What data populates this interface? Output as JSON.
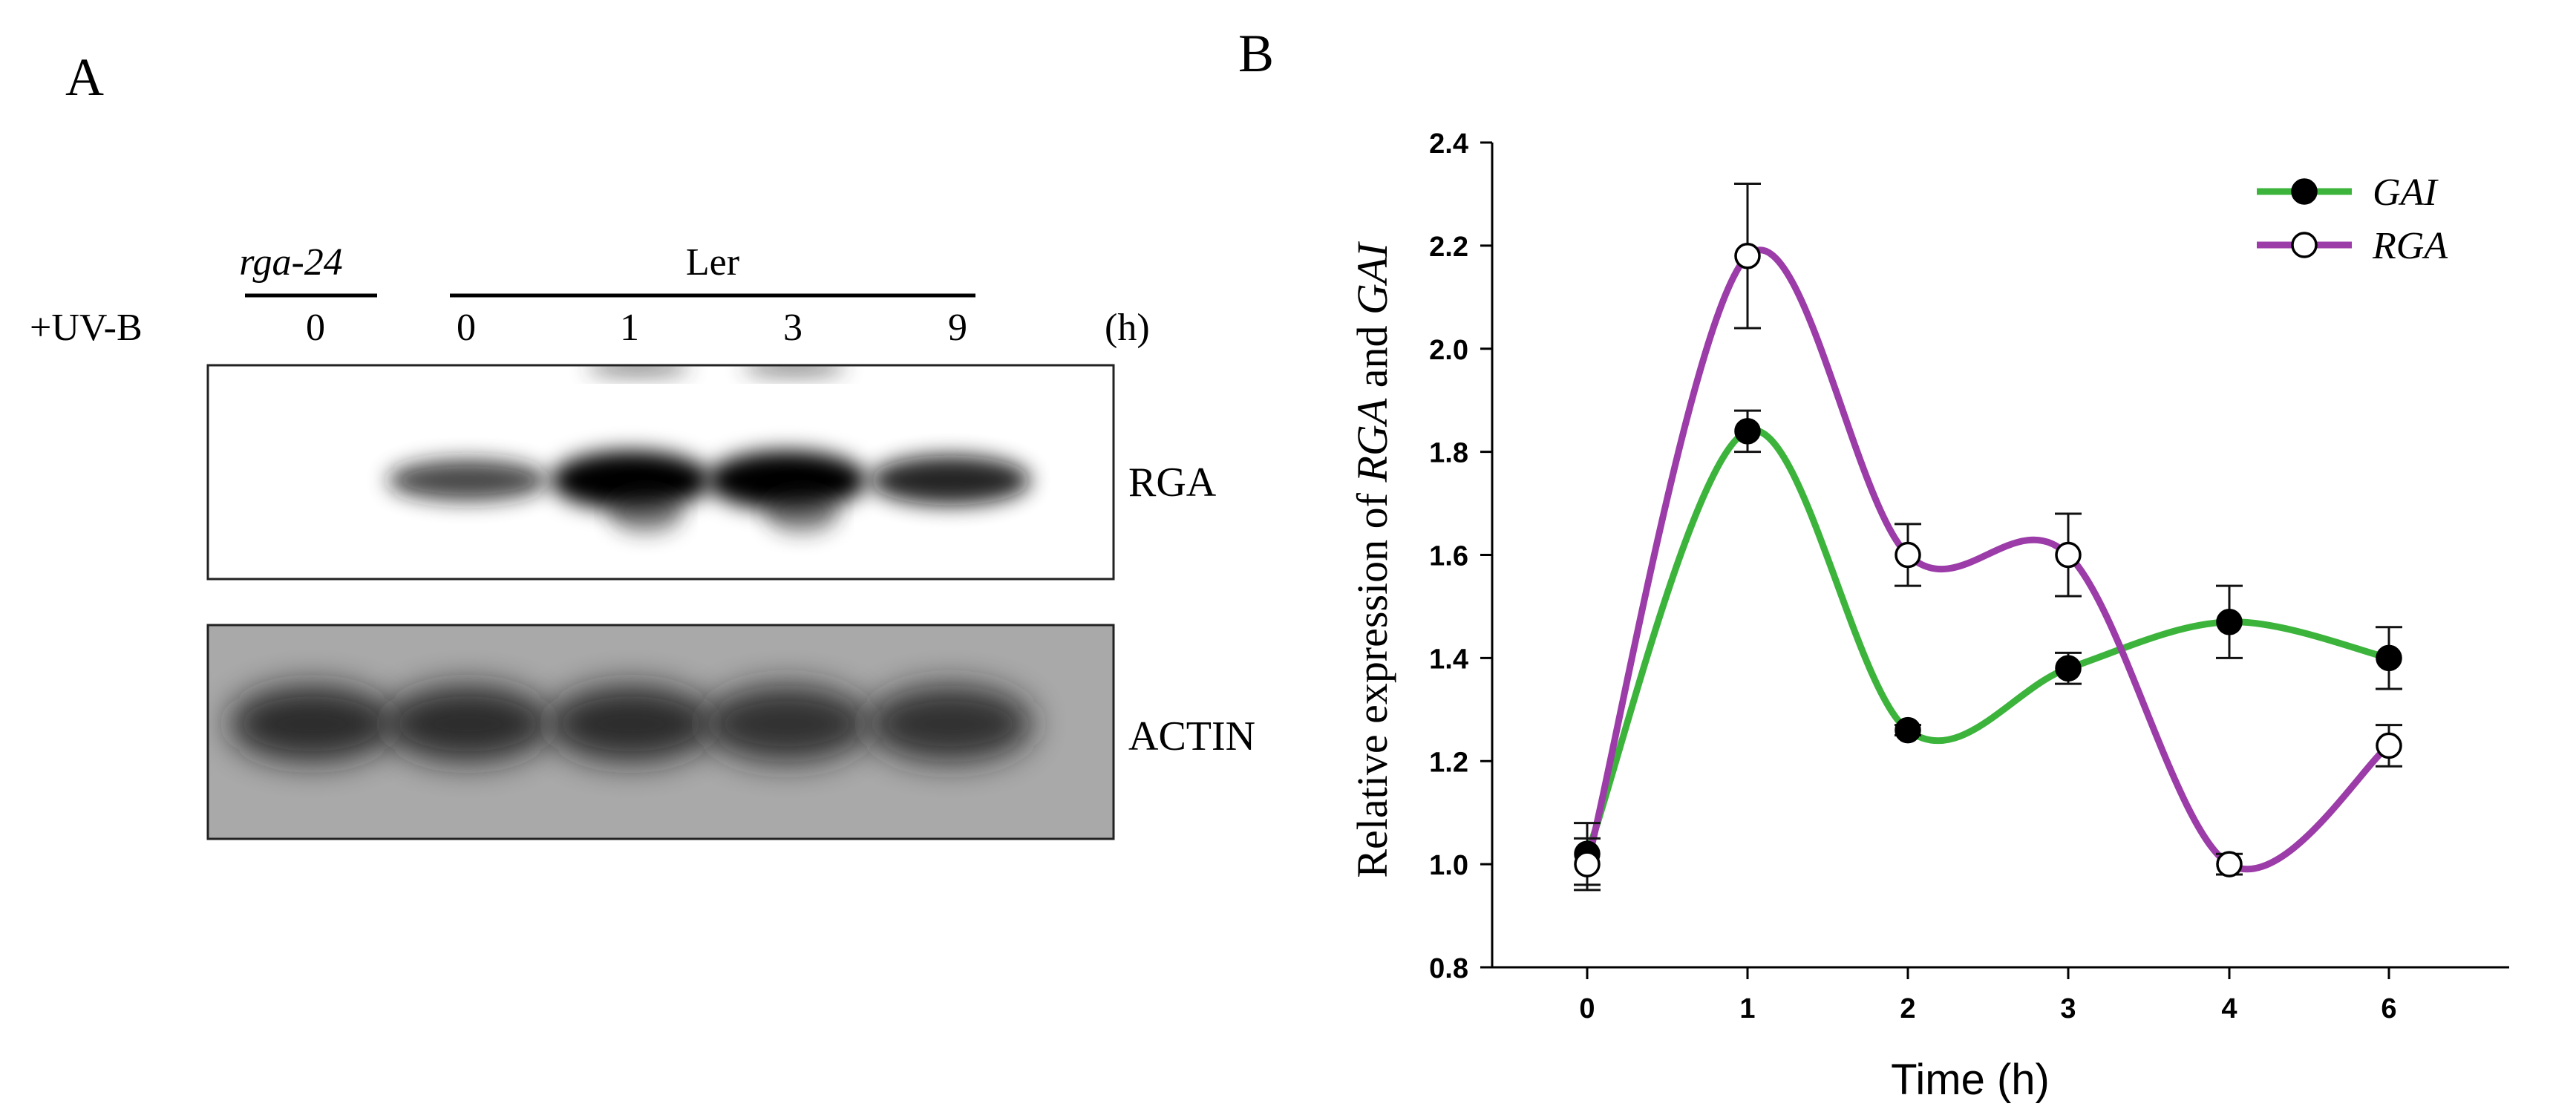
{
  "panel_a": {
    "label": "A",
    "rga_header": "rga-24",
    "ler_header": "Ler",
    "treatment_label": "+UV-B",
    "lane_times": [
      "0",
      "0",
      "1",
      "3",
      "9"
    ],
    "unit_label": "(h)",
    "blot_labels": {
      "top": "RGA",
      "bottom": "ACTIN"
    },
    "rga_band_intensity": [
      0.0,
      0.55,
      1.0,
      1.0,
      0.75
    ],
    "actin_band_intensity": [
      0.85,
      0.75,
      0.75,
      0.7,
      0.7
    ]
  },
  "panel_b": {
    "label": "B"
  },
  "chart_data": {
    "type": "line",
    "categories": [
      "0",
      "1",
      "2",
      "3",
      "4",
      "6"
    ],
    "xlabel": "Time (h)",
    "ylabel": {
      "prefix": "Relative expression of ",
      "gene1": "RGA",
      "middle": " and ",
      "gene2": "GAI"
    },
    "ylim": [
      0.8,
      2.4
    ],
    "yticks": [
      0.8,
      1.0,
      1.2,
      1.4,
      1.6,
      1.8,
      2.0,
      2.2,
      2.4
    ],
    "ytick_labels": [
      "0.8",
      "1.0",
      "1.2",
      "1.4",
      "1.6",
      "1.8",
      "2.0",
      "2.2",
      "2.4"
    ],
    "grid": false,
    "legend": "top-right",
    "series": [
      {
        "name": "GAI",
        "color": "#3cb43c",
        "marker": "filled-circle",
        "values": [
          1.02,
          1.84,
          1.26,
          1.38,
          1.47,
          1.4
        ],
        "errors": [
          0.06,
          0.04,
          0.01,
          0.03,
          0.07,
          0.06
        ]
      },
      {
        "name": "RGA",
        "color": "#9b3ca8",
        "marker": "open-circle",
        "values": [
          1.0,
          2.18,
          1.6,
          1.6,
          1.0,
          1.23
        ],
        "errors": [
          0.05,
          0.14,
          0.06,
          0.08,
          0.02,
          0.04
        ]
      }
    ]
  }
}
